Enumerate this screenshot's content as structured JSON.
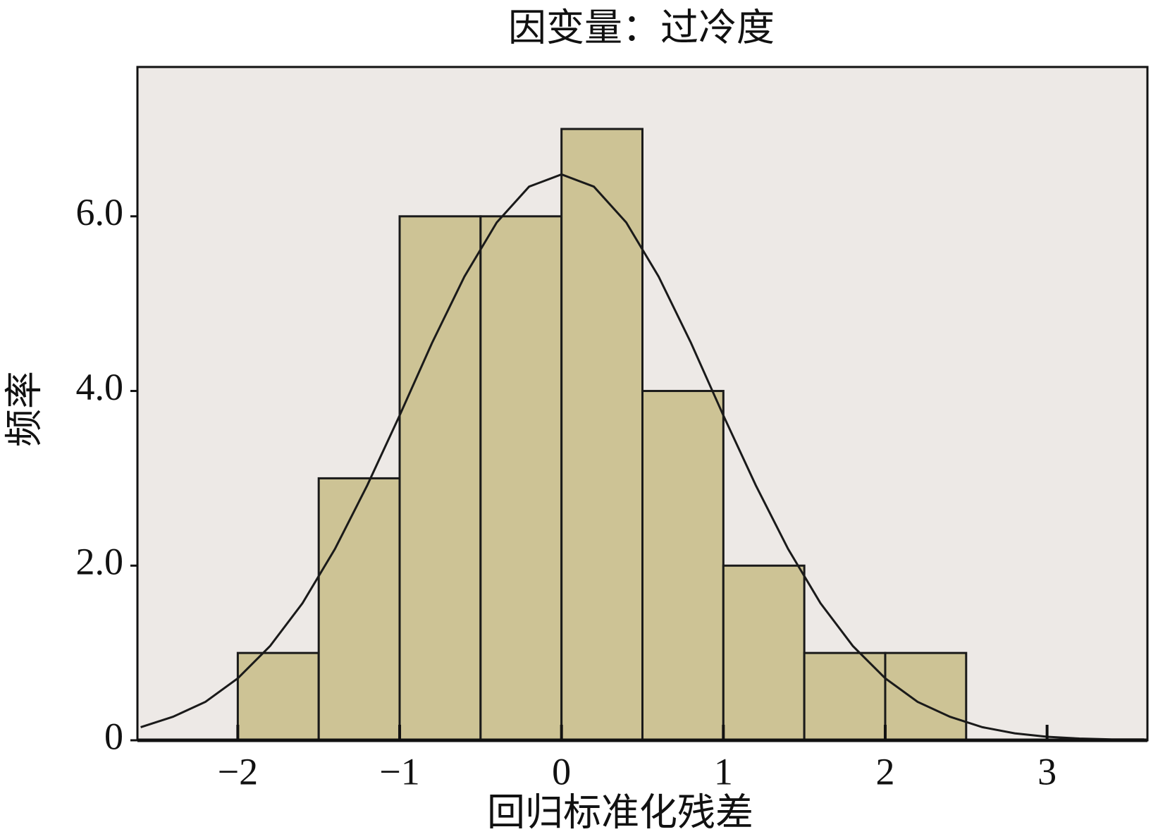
{
  "chart_data": {
    "type": "histogram",
    "title": "因变量：过冷度",
    "x_label": "回归标准化残差",
    "y_label": "频率",
    "bins": [
      -2,
      -1.5,
      -1,
      -0.5,
      0,
      0.5,
      1,
      1.5,
      2,
      2.5
    ],
    "counts": [
      1,
      3,
      6,
      6,
      7,
      4,
      2,
      1,
      1
    ],
    "color": "#cdc395",
    "edge_color": "#1a1a1a",
    "background": "#ede9e6",
    "curve": {
      "color": "#1a1a1a",
      "x": [
        -2.6,
        -2.4,
        -2.2,
        -2.0,
        -1.8,
        -1.6,
        -1.4,
        -1.2,
        -1.0,
        -0.8,
        -0.6,
        -0.4,
        -0.2,
        0,
        0.2,
        0.4,
        0.6,
        0.8,
        1.0,
        1.2,
        1.4,
        1.6,
        1.8,
        2.0,
        2.2,
        2.4,
        2.6,
        2.8,
        3.0,
        3.2,
        3.4,
        3.6
      ],
      "y": [
        0.15,
        0.27,
        0.44,
        0.71,
        1.08,
        1.57,
        2.19,
        2.92,
        3.72,
        4.55,
        5.31,
        5.93,
        6.34,
        6.48,
        6.34,
        5.93,
        5.31,
        4.55,
        3.72,
        2.92,
        2.19,
        1.57,
        1.08,
        0.71,
        0.44,
        0.27,
        0.15,
        0.08,
        0.04,
        0.02,
        0.01,
        0.01
      ]
    },
    "xlim": [
      -2.62,
      3.62
    ],
    "ylim": [
      0,
      7.71
    ],
    "xticks": [
      {
        "value": -2,
        "label": "−2"
      },
      {
        "value": -1,
        "label": "−1"
      },
      0,
      1,
      2,
      3
    ],
    "yticks": [
      0,
      {
        "value": 2,
        "label": "2.0"
      },
      {
        "value": 4,
        "label": "4.0"
      },
      {
        "value": 6,
        "label": "6.0"
      }
    ],
    "grid": false
  }
}
